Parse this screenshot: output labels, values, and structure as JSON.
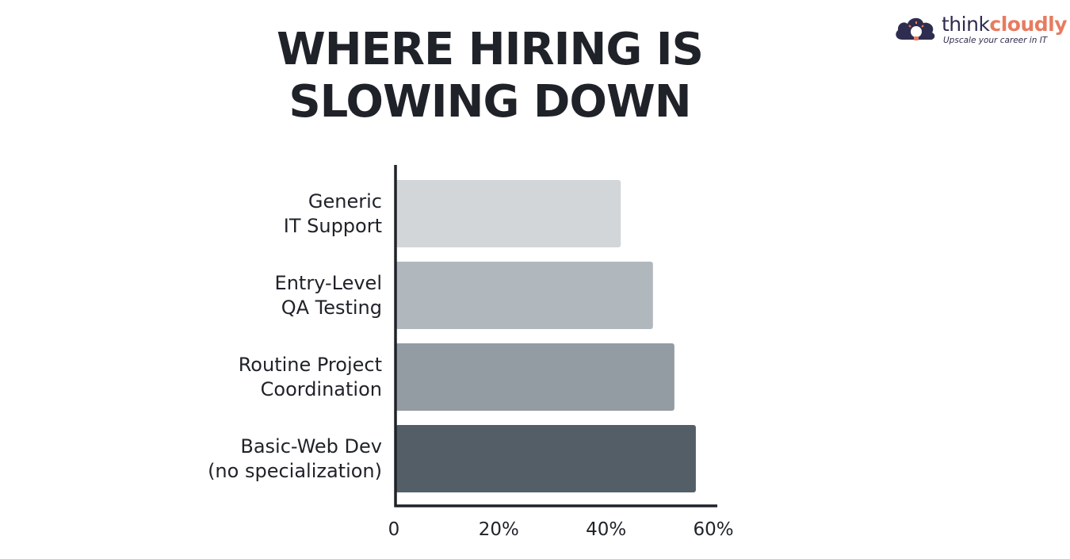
{
  "brand": {
    "name_part1": "think",
    "name_part2": "cloudly",
    "tagline": "Upscale your career in IT",
    "colors": {
      "dark": "#2f2d4f",
      "accent": "#e87b5f"
    },
    "icon": "cloud-lightbulb-icon"
  },
  "chart_data": {
    "type": "bar",
    "orientation": "horizontal",
    "title": [
      "WHERE HIRING IS",
      "SLOWING DOWN"
    ],
    "categories": [
      [
        "Generic",
        "IT Support"
      ],
      [
        "Entry-Level",
        "QA Testing"
      ],
      [
        "Routine Project",
        "Coordination"
      ],
      [
        "Basic-Web Dev",
        "(no specialization)"
      ]
    ],
    "values": [
      42,
      48,
      52,
      56
    ],
    "bar_colors": [
      "#d2d6d9",
      "#b0b7bd",
      "#939ca3",
      "#545e66"
    ],
    "x_ticks": [
      {
        "value": 0,
        "label": "0"
      },
      {
        "value": 20,
        "label": "20%"
      },
      {
        "value": 40,
        "label": "40%"
      },
      {
        "value": 60,
        "label": "60%"
      }
    ],
    "xlim": [
      0,
      60
    ],
    "xlabel": "",
    "ylabel": "",
    "grid": false,
    "legend": "none"
  }
}
